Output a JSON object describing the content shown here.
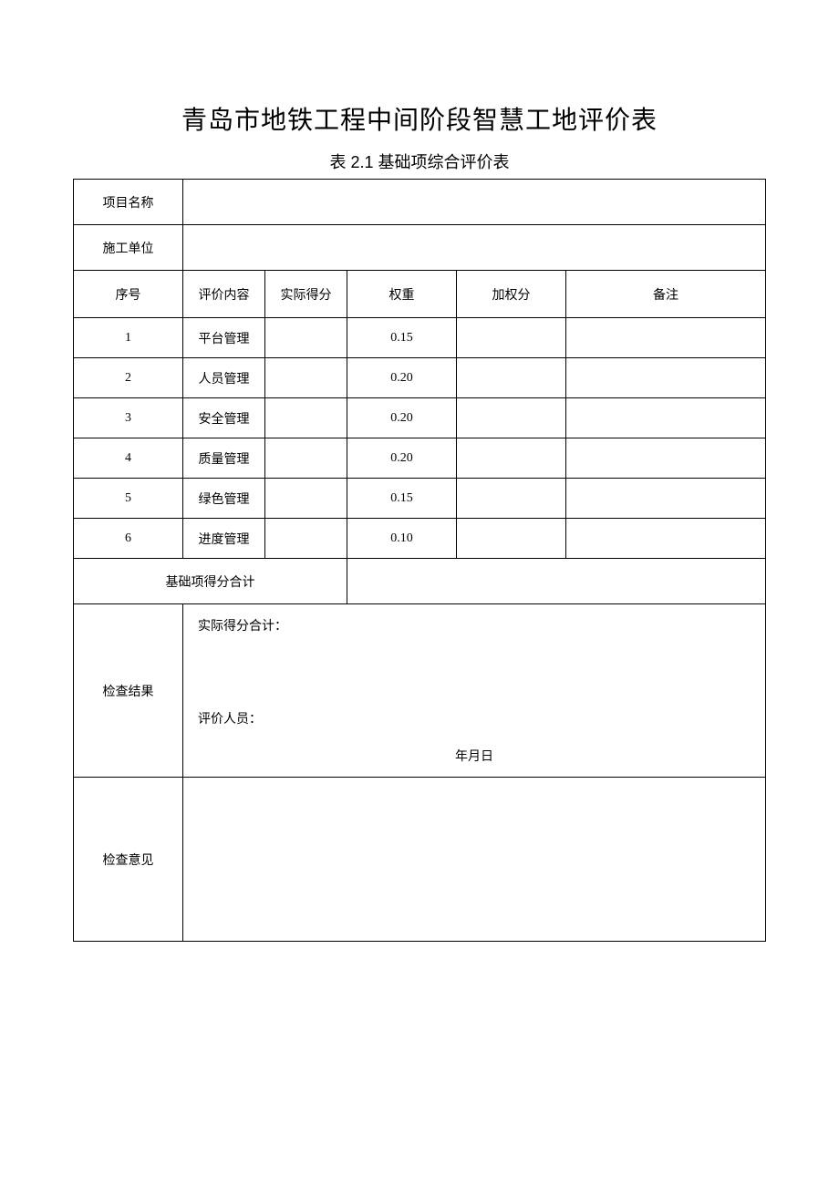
{
  "document": {
    "main_title": "青岛市地铁工程中间阶段智慧工地评价表",
    "sub_title": "表 2.1 基础项综合评价表"
  },
  "meta": {
    "project_name_label": "项目名称",
    "project_name_value": "",
    "construction_unit_label": "施工单位",
    "construction_unit_value": ""
  },
  "table": {
    "columns": [
      "序号",
      "评价内容",
      "实际得分",
      "权重",
      "加权分",
      "备注"
    ],
    "rows": [
      {
        "no": "1",
        "content": "平台管理",
        "score": "",
        "weight": "0.15",
        "weighted": "",
        "remark": ""
      },
      {
        "no": "2",
        "content": "人员管理",
        "score": "",
        "weight": "0.20",
        "weighted": "",
        "remark": ""
      },
      {
        "no": "3",
        "content": "安全管理",
        "score": "",
        "weight": "0.20",
        "weighted": "",
        "remark": ""
      },
      {
        "no": "4",
        "content": "质量管理",
        "score": "",
        "weight": "0.20",
        "weighted": "",
        "remark": ""
      },
      {
        "no": "5",
        "content": "绿色管理",
        "score": "",
        "weight": "0.15",
        "weighted": "",
        "remark": ""
      },
      {
        "no": "6",
        "content": "进度管理",
        "score": "",
        "weight": "0.10",
        "weighted": "",
        "remark": ""
      }
    ],
    "subtotal_label": "基础项得分合计",
    "subtotal_value": ""
  },
  "result": {
    "label": "检查结果",
    "actual_total_label": "实际得分合计：",
    "actual_total_value": "",
    "evaluator_label": "评价人员：",
    "evaluator_value": "",
    "date_label": "年月日"
  },
  "opinion": {
    "label": "检查意见",
    "value": ""
  },
  "style": {
    "background_color": "#ffffff",
    "border_color": "#000000",
    "text_color": "#000000",
    "title_fontsize": 28,
    "subtitle_fontsize": 18,
    "body_fontsize": 14,
    "title_font_family": "SimHei",
    "body_font_family": "SimSun"
  }
}
